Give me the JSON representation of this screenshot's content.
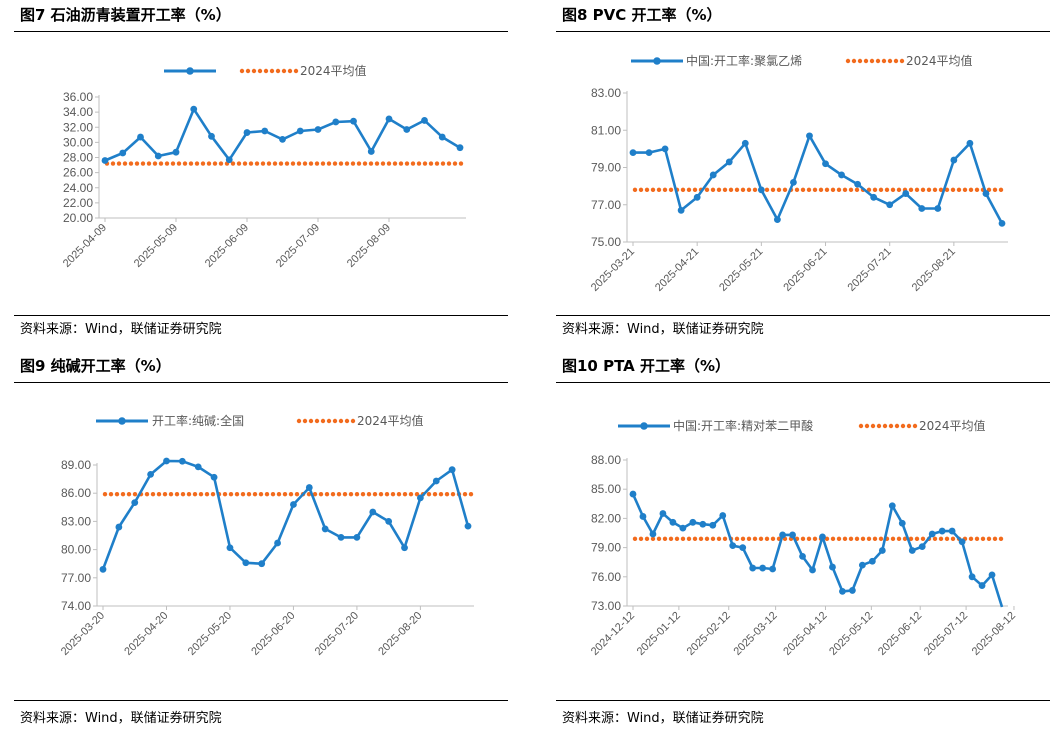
{
  "colors": {
    "series": "#1f7fc9",
    "average": "#f26b1d",
    "axis": "#bfbfbf",
    "text": "#595959"
  },
  "panels": [
    {
      "title": "图7  石油沥青装置开工率（%）",
      "source": "资料来源：Wind，联储证券研究院"
    },
    {
      "title": "图8  PVC 开工率（%）",
      "source": "资料来源：Wind，联储证券研究院"
    },
    {
      "title": "图9  纯碱开工率（%）",
      "source": "资料来源：Wind，联储证券研究院"
    },
    {
      "title": "图10 PTA 开工率（%）",
      "source": "资料来源：Wind，联储证券研究院"
    }
  ],
  "chart_data": [
    {
      "type": "line",
      "title": "石油沥青装置开工率（%）",
      "ylim": [
        20,
        36
      ],
      "yticks": [
        "36.00",
        "34.00",
        "32.00",
        "30.00",
        "28.00",
        "26.00",
        "24.00",
        "22.00",
        "20.00"
      ],
      "ytick_values": [
        36,
        34,
        32,
        30,
        28,
        26,
        24,
        22,
        20
      ],
      "xtick_labels": [
        "2025-04-09",
        "2025-05-09",
        "2025-06-09",
        "2025-07-09",
        "2025-08-09"
      ],
      "xtick_positions": [
        0,
        4,
        8,
        12,
        16
      ],
      "series": [
        {
          "name": "",
          "values": [
            27.6,
            28.6,
            30.7,
            28.2,
            28.7,
            34.4,
            30.8,
            27.7,
            31.3,
            31.5,
            30.4,
            31.5,
            31.7,
            32.7,
            32.8,
            28.8,
            33.1,
            31.7,
            32.9,
            30.7,
            29.3
          ]
        }
      ],
      "average": {
        "name": "2024平均值",
        "value": 27.2
      }
    },
    {
      "type": "line",
      "title": "PVC 开工率（%）",
      "ylim": [
        75,
        83
      ],
      "yticks": [
        "83.00",
        "81.00",
        "79.00",
        "77.00",
        "75.00"
      ],
      "ytick_values": [
        83,
        81,
        79,
        77,
        75
      ],
      "xtick_labels": [
        "2025-03-21",
        "2025-04-21",
        "2025-05-21",
        "2025-06-21",
        "2025-07-21",
        "2025-08-21"
      ],
      "xtick_positions": [
        0,
        4,
        8,
        12,
        16,
        20
      ],
      "series": [
        {
          "name": "中国:开工率:聚氯乙烯",
          "values": [
            79.8,
            79.8,
            80.0,
            76.7,
            77.4,
            78.6,
            79.3,
            80.3,
            77.8,
            76.2,
            78.2,
            80.7,
            79.2,
            78.6,
            78.1,
            77.4,
            77.0,
            77.6,
            76.8,
            76.8,
            79.4,
            80.3,
            77.6,
            76.0
          ]
        }
      ],
      "average": {
        "name": "2024平均值",
        "value": 77.8
      }
    },
    {
      "type": "line",
      "title": "纯碱开工率（%）",
      "ylim": [
        74,
        89
      ],
      "yticks": [
        "89.00",
        "86.00",
        "83.00",
        "80.00",
        "77.00",
        "74.00"
      ],
      "ytick_values": [
        89,
        86,
        83,
        80,
        77,
        74
      ],
      "xtick_labels": [
        "2025-03-20",
        "2025-04-20",
        "2025-05-20",
        "2025-06-20",
        "2025-07-20",
        "2025-08-20"
      ],
      "xtick_positions": [
        0,
        4,
        8,
        12,
        16,
        20
      ],
      "series": [
        {
          "name": "开工率:纯碱:全国",
          "values": [
            77.9,
            82.4,
            85.0,
            88.0,
            89.5,
            89.4,
            88.8,
            87.7,
            80.2,
            78.6,
            78.5,
            80.7,
            84.8,
            86.6,
            82.2,
            81.3,
            81.3,
            84.0,
            83.0,
            80.2,
            85.5,
            87.3,
            88.5,
            82.5
          ]
        }
      ],
      "average": {
        "name": "2024平均值",
        "value": 85.9
      }
    },
    {
      "type": "line",
      "title": "PTA 开工率（%）",
      "ylim": [
        73,
        88
      ],
      "yticks": [
        "88.00",
        "85.00",
        "82.00",
        "79.00",
        "76.00",
        "73.00"
      ],
      "ytick_values": [
        88,
        85,
        82,
        79,
        76,
        73
      ],
      "xtick_labels": [
        "2024-12-12",
        "2025-01-12",
        "2025-02-12",
        "2025-03-12",
        "2025-04-12",
        "2025-05-12",
        "2025-06-12",
        "2025-07-12",
        "2025-08-12"
      ],
      "xtick_positions": [
        0,
        4.6,
        9.6,
        14.3,
        19.3,
        23.9,
        28.8,
        33.4,
        38.2
      ],
      "series": [
        {
          "name": "中国:开工率:精对苯二甲酸",
          "values": [
            84.5,
            82.2,
            80.4,
            82.5,
            81.6,
            81.0,
            81.6,
            81.4,
            81.3,
            82.3,
            79.2,
            79.0,
            76.9,
            76.9,
            76.8,
            80.3,
            80.3,
            78.1,
            76.7,
            80.1,
            77.0,
            74.5,
            74.6,
            77.2,
            77.6,
            78.7,
            83.3,
            81.5,
            78.7,
            79.1,
            80.4,
            80.7,
            80.7,
            79.6,
            76.0,
            75.1,
            76.2,
            72.9
          ]
        }
      ],
      "average": {
        "name": "2024平均值",
        "value": 79.9
      }
    }
  ]
}
